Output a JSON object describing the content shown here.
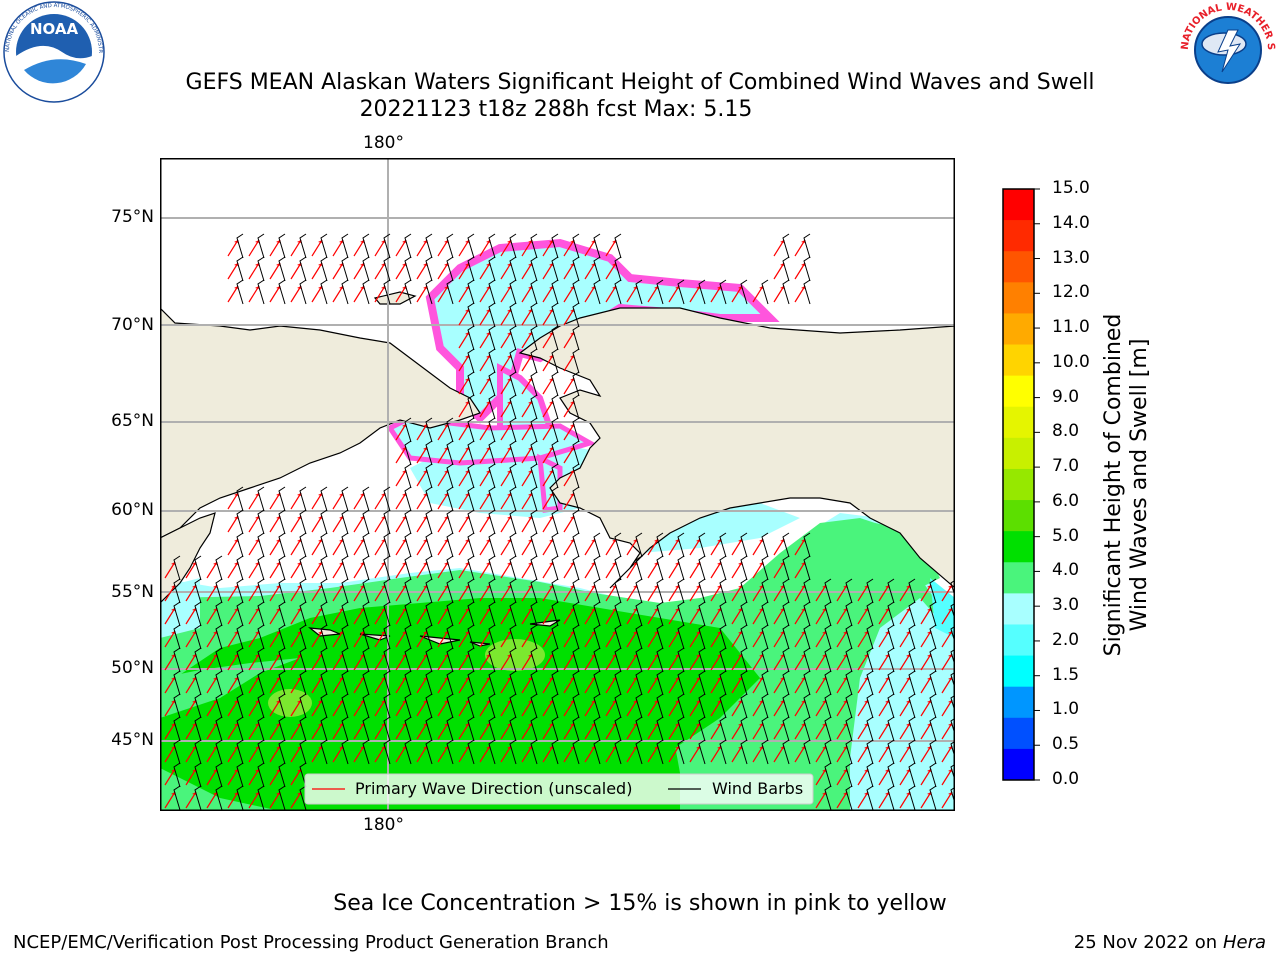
{
  "title": {
    "line1": "GEFS MEAN Alaskan Waters Significant Height of Combined Wind Waves and Swell",
    "line2": "20221123 t18z 288h fcst   Max: 5.15"
  },
  "logos": {
    "left": {
      "name": "NOAA",
      "ring_text": "NATIONAL OCEANIC AND ATMOSPHERIC ADMINISTRATION · U.S. DEPARTMENT OF COMMERCE"
    },
    "right": {
      "name": "NATIONAL WEATHER SERVICE"
    }
  },
  "map": {
    "lon_labels": {
      "top": "180°",
      "bottom": "180°"
    },
    "lat_labels": [
      "75°N",
      "70°N",
      "65°N",
      "60°N",
      "55°N",
      "50°N",
      "45°N"
    ],
    "colors": {
      "land": "#efecdc",
      "coast": "#000000",
      "grid": "#b0b0b0",
      "arrow": "#ff0000",
      "barb": "#000000"
    },
    "legend": {
      "primary_wave": "Primary Wave Direction (unscaled)",
      "wind_barbs": "Wind Barbs"
    }
  },
  "colorbar": {
    "label_line1": "Significant Height of Combined",
    "label_line2": "Wind Waves and Swell [m]",
    "ticks": [
      "15.0",
      "14.0",
      "13.0",
      "12.0",
      "11.0",
      "10.0",
      "9.0",
      "8.0",
      "7.0",
      "6.0",
      "5.0",
      "4.0",
      "3.0",
      "2.0",
      "1.5",
      "1.0",
      "0.5",
      "0.0"
    ],
    "colors_top_to_bottom": [
      "#ff0000",
      "#ff2a00",
      "#ff5500",
      "#ff8000",
      "#ffaa00",
      "#ffd400",
      "#ffff00",
      "#e5f500",
      "#c8f000",
      "#96e800",
      "#5cdf00",
      "#00e000",
      "#4af47c",
      "#a8ffff",
      "#55ffff",
      "#00ffff",
      "#0096ff",
      "#0050ff",
      "#0000ff"
    ]
  },
  "footer": {
    "note": "Sea Ice Concentration > 15% is shown in pink to yellow",
    "left": "NCEP/EMC/Verification Post Processing Product Generation Branch",
    "right_date": "25 Nov 2022 on",
    "right_host": "Hera"
  }
}
